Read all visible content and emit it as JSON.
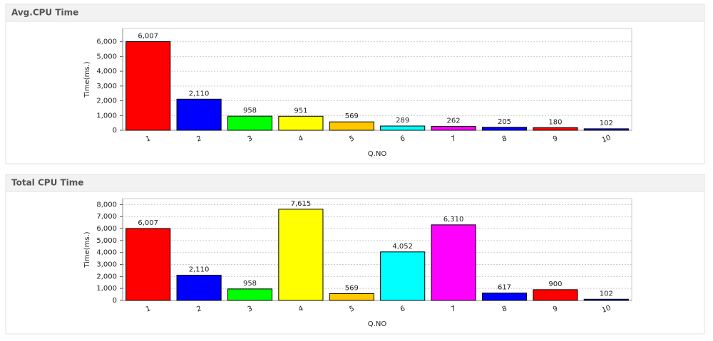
{
  "chart_data": [
    {
      "type": "bar",
      "title": "Avg.CPU Time",
      "xlabel": "Q.NO",
      "ylabel": "Time(ms.)",
      "categories": [
        "1",
        "2",
        "3",
        "4",
        "5",
        "6",
        "7",
        "8",
        "9",
        "10"
      ],
      "values": [
        6007,
        2110,
        958,
        951,
        569,
        289,
        262,
        205,
        180,
        102
      ],
      "value_labels": [
        "6,007",
        "2,110",
        "958",
        "951",
        "569",
        "289",
        "262",
        "205",
        "180",
        "102"
      ],
      "colors": [
        "#ff0000",
        "#0000ff",
        "#00ff00",
        "#ffff00",
        "#ffc800",
        "#00ffff",
        "#ff00ff",
        "#0000ff",
        "#ff0000",
        "#0000ff"
      ],
      "ylim": [
        0,
        6900
      ],
      "yticks": [
        0,
        {
          "value": 1000,
          "label": "1,000"
        },
        {
          "value": 2000,
          "label": "2,000"
        },
        {
          "value": 3000,
          "label": "3,000"
        },
        {
          "value": 4000,
          "label": "4,000"
        },
        {
          "value": 5000,
          "label": "5,000"
        },
        {
          "value": 6000,
          "label": "6,000"
        }
      ],
      "grid": true
    },
    {
      "type": "bar",
      "title": "Total CPU Time",
      "xlabel": "Q.NO",
      "ylabel": "Time(ms.)",
      "categories": [
        "1",
        "2",
        "3",
        "4",
        "5",
        "6",
        "7",
        "8",
        "9",
        "10"
      ],
      "values": [
        6007,
        2110,
        958,
        7615,
        569,
        4052,
        6310,
        617,
        900,
        102
      ],
      "value_labels": [
        "6,007",
        "2,110",
        "958",
        "7,615",
        "569",
        "4,052",
        "6,310",
        "617",
        "900",
        "102"
      ],
      "colors": [
        "#ff0000",
        "#0000ff",
        "#00ff00",
        "#ffff00",
        "#ffc800",
        "#00ffff",
        "#ff00ff",
        "#0000ff",
        "#ff0000",
        "#0000ff"
      ],
      "ylim": [
        0,
        8500
      ],
      "yticks": [
        0,
        {
          "value": 1000,
          "label": "1,000"
        },
        {
          "value": 2000,
          "label": "2,000"
        },
        {
          "value": 3000,
          "label": "3,000"
        },
        {
          "value": 4000,
          "label": "4,000"
        },
        {
          "value": 5000,
          "label": "5,000"
        },
        {
          "value": 6000,
          "label": "6,000"
        },
        {
          "value": 7000,
          "label": "7,000"
        },
        {
          "value": 8000,
          "label": "8,000"
        }
      ],
      "grid": true
    }
  ]
}
